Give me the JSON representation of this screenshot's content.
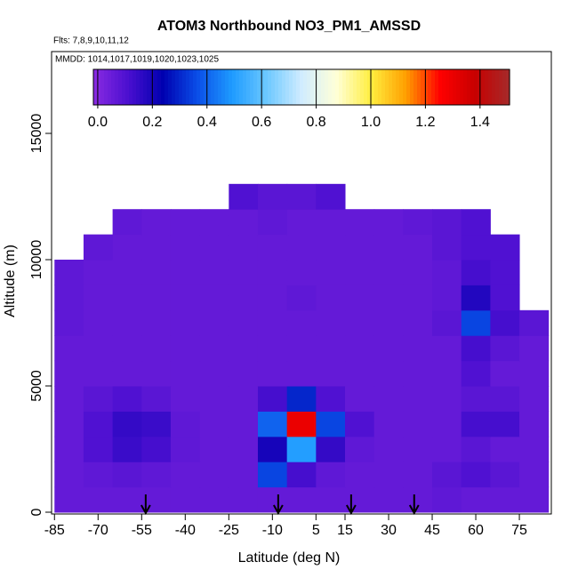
{
  "chart_data": {
    "type": "heatmap",
    "title": "ATOM3 Northbound NO3_PM1_AMSSD",
    "subtitle": "Flts: 7,8,9,10,11,12",
    "annotation": "MMDD: 1014,1017,1019,1020,1023,1025",
    "xlabel": "Latitude (deg N)",
    "ylabel": "Altitude (m)",
    "xlim": [
      -86,
      86
    ],
    "ylim": [
      -70,
      18240
    ],
    "xticks": [
      -85,
      -70,
      -55,
      -40,
      -25,
      -10,
      5,
      15,
      30,
      45,
      60,
      75
    ],
    "yticks": [
      0,
      5000,
      10000,
      15000
    ],
    "lat_edges": [
      -85,
      -75,
      -65,
      -55,
      -45,
      -35,
      -25,
      -15,
      -5,
      5,
      15,
      25,
      35,
      45,
      55,
      65,
      75,
      85
    ],
    "alt_edges": [
      0,
      1000,
      2000,
      3000,
      4000,
      5000,
      6000,
      7000,
      8000,
      9000,
      10000,
      11000,
      12000,
      13000
    ],
    "z": [
      [
        0.06,
        0.06,
        0.06,
        0.06,
        0.06,
        0.06,
        0.06,
        0.06,
        0.06,
        0.06,
        0.06,
        0.06,
        0.06,
        0.07,
        0.06,
        0.06,
        0.06
      ],
      [
        0.06,
        0.07,
        0.08,
        0.07,
        0.06,
        0.06,
        0.06,
        0.35,
        0.12,
        0.07,
        0.06,
        0.06,
        0.06,
        0.08,
        0.1,
        0.08,
        0.06
      ],
      [
        0.06,
        0.1,
        0.14,
        0.12,
        0.07,
        0.06,
        0.06,
        0.2,
        0.5,
        0.15,
        0.07,
        0.06,
        0.06,
        0.06,
        0.08,
        0.06,
        0.06
      ],
      [
        0.06,
        0.1,
        0.15,
        0.14,
        0.07,
        0.06,
        0.06,
        0.4,
        1.3,
        0.35,
        0.1,
        0.06,
        0.06,
        0.06,
        0.12,
        0.12,
        0.06
      ],
      [
        0.06,
        0.08,
        0.1,
        0.08,
        0.06,
        0.06,
        0.06,
        0.12,
        0.3,
        0.1,
        0.06,
        0.06,
        0.06,
        0.06,
        0.08,
        0.08,
        0.06
      ],
      [
        0.06,
        0.06,
        0.06,
        0.06,
        0.06,
        0.06,
        0.06,
        0.06,
        0.06,
        0.06,
        0.06,
        0.06,
        0.06,
        0.06,
        0.1,
        0.06,
        0.06
      ],
      [
        0.06,
        0.06,
        0.06,
        0.06,
        0.06,
        0.06,
        0.06,
        0.06,
        0.06,
        0.06,
        0.06,
        0.06,
        0.06,
        0.06,
        0.12,
        0.08,
        0.06
      ],
      [
        0.07,
        0.06,
        0.06,
        0.06,
        0.06,
        0.06,
        0.06,
        0.06,
        0.06,
        0.06,
        0.06,
        0.06,
        0.06,
        0.08,
        0.35,
        0.12,
        0.08
      ],
      [
        0.07,
        0.06,
        0.06,
        0.06,
        0.06,
        0.06,
        0.06,
        0.06,
        0.07,
        0.06,
        0.06,
        0.06,
        0.06,
        0.07,
        0.18,
        0.1,
        null
      ],
      [
        0.07,
        0.06,
        0.06,
        0.06,
        0.06,
        0.06,
        0.06,
        0.06,
        0.06,
        0.06,
        0.06,
        0.06,
        0.06,
        0.07,
        0.12,
        0.1,
        null
      ],
      [
        null,
        0.07,
        0.06,
        0.06,
        0.06,
        0.06,
        0.06,
        0.06,
        0.06,
        0.06,
        0.06,
        0.06,
        0.06,
        0.08,
        0.1,
        0.1,
        null
      ],
      [
        null,
        null,
        0.07,
        0.06,
        0.06,
        0.06,
        0.06,
        0.07,
        0.06,
        0.06,
        0.06,
        0.06,
        0.07,
        0.08,
        0.1,
        null,
        null
      ],
      [
        null,
        null,
        null,
        null,
        null,
        null,
        0.1,
        0.08,
        0.08,
        0.1,
        null,
        null,
        null,
        null,
        null,
        null,
        null
      ]
    ],
    "clim": [
      -0.016,
      1.508
    ],
    "colors": [
      "#8a2be2",
      "#4b0fd0",
      "#0000b0",
      "#0a4ee8",
      "#1e9bff",
      "#6cc8ff",
      "#d0ecff",
      "#ffffd8",
      "#ffee40",
      "#ffa000",
      "#ff0000",
      "#c80000",
      "#a52a2a"
    ],
    "cticks": [
      {
        "value": 0,
        "label": "0.0"
      },
      0.2,
      0.4,
      0.6,
      0.8,
      {
        "value": 1,
        "label": "1.0"
      },
      1.2,
      1.4
    ],
    "markers_lat": [
      -53.6,
      -8.0,
      17.1,
      38.8
    ]
  }
}
